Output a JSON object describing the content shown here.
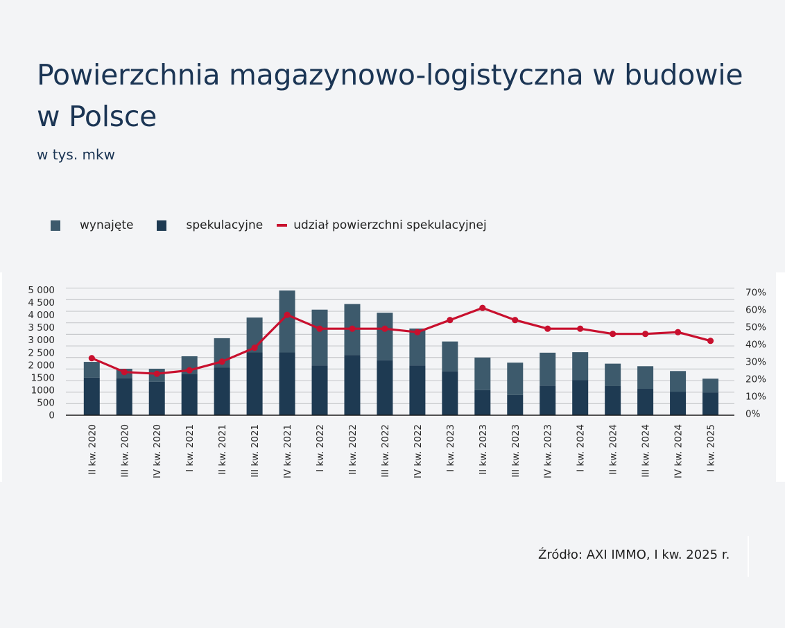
{
  "header": {
    "title": "Powierzchnia magazynowo-logistyczna w budowie w Polsce",
    "subtitle": "w tys. mkw"
  },
  "legend": {
    "items": [
      {
        "label": "wynajęte",
        "shape": "square",
        "color": "#3d5a6c"
      },
      {
        "label": "spekulacyjne",
        "shape": "square",
        "color": "#1e3a52"
      },
      {
        "label": "udział powierzchni spekulacyjnej",
        "shape": "line",
        "color": "#c8102e"
      }
    ]
  },
  "source": "Źródło: AXI IMMO, I kw. 2025 r.",
  "colors": {
    "background": "#f3f4f6",
    "wynajete": "#3d5a6c",
    "spekulacyjne": "#1e3a52",
    "line": "#c8102e",
    "grid": "#c8cacd",
    "axis": "#1a1a1a",
    "text": "#1b3554"
  },
  "chart_data": {
    "type": "bar",
    "stacked": true,
    "title": "Powierzchnia magazynowo-logistyczna w budowie w Polsce",
    "subtitle": "w tys. mkw",
    "xlabel": "",
    "ylabel": "tys. mkw",
    "y2label": "udział powierzchni spekulacyjnej",
    "categories": [
      "II kw. 2020",
      "III kw. 2020",
      "IV kw. 2020",
      "I kw. 2021",
      "II kw. 2021",
      "III kw. 2021",
      "IV kw. 2021",
      "I kw. 2022",
      "II kw. 2022",
      "III kw. 2022",
      "IV kw. 2022",
      "I kw. 2023",
      "II kw. 2023",
      "III kw. 2023",
      "IV kw. 2023",
      "I kw. 2024",
      "II kw. 2024",
      "III kw. 2024",
      "IV kw. 2024",
      "I kw. 2025"
    ],
    "series": [
      {
        "name": "spekulacyjne",
        "type": "bar",
        "axis": "left",
        "values": [
          1460,
          1430,
          1300,
          1610,
          1850,
          2450,
          2450,
          1940,
          2350,
          2140,
          1940,
          1710,
          970,
          780,
          1140,
          1360,
          1130,
          1020,
          910,
          880
        ]
      },
      {
        "name": "wynajęte",
        "type": "bar",
        "axis": "left",
        "values": [
          620,
          380,
          510,
          690,
          1160,
          1370,
          2430,
          2190,
          2000,
          1870,
          1450,
          1170,
          1280,
          1270,
          1300,
          1100,
          880,
          890,
          810,
          540
        ]
      },
      {
        "name": "udział powierzchni spekulacyjnej",
        "type": "line",
        "axis": "right",
        "unit": "%",
        "values": [
          32,
          24,
          23,
          25,
          30,
          38,
          57,
          49,
          49,
          49,
          47,
          54,
          61,
          54,
          49,
          49,
          46,
          46,
          47,
          42
        ]
      }
    ],
    "yticks": [
      "0",
      "500",
      "1000",
      "1500",
      "2 000",
      "2 500",
      "3 000",
      "3 500",
      "4 000",
      "4 500",
      "5 000"
    ],
    "y2ticks": [
      "0%",
      "10%",
      "20%",
      "30%",
      "40%",
      "50%",
      "60%",
      "70%"
    ],
    "ylim": [
      0,
      5000
    ],
    "y2lim": [
      0,
      70
    ],
    "grid": true,
    "legend_position": "top-left"
  }
}
